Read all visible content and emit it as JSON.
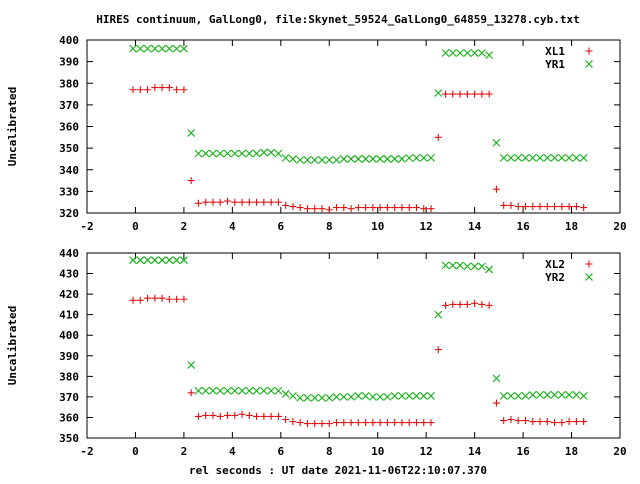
{
  "title": "HIRES continuum, GalLong0, file:Skynet_59524_GalLong0_64859_13278.cyb.txt",
  "xlabel": "rel seconds : UT date 2021-11-06T22:10:07.370",
  "colors": {
    "red": "#e01010",
    "green": "#10b010"
  },
  "chart_data": [
    {
      "type": "scatter",
      "ylabel": "Uncalibrated",
      "xlim": [
        -2,
        20
      ],
      "ylim": [
        320,
        400
      ],
      "xticks": [
        -2,
        0,
        2,
        4,
        6,
        8,
        10,
        12,
        14,
        16,
        18,
        20
      ],
      "yticks": [
        320,
        330,
        340,
        350,
        360,
        370,
        380,
        390,
        400
      ],
      "legend_position": "top-right",
      "series": [
        {
          "name": "XL1",
          "marker": "plus",
          "color": "#e01010",
          "x": [
            -0.1,
            0.2,
            0.5,
            0.8,
            1.1,
            1.4,
            1.7,
            2.0,
            2.3,
            2.6,
            2.9,
            3.2,
            3.5,
            3.8,
            4.1,
            4.4,
            4.7,
            5.0,
            5.3,
            5.6,
            5.9,
            6.2,
            6.5,
            6.8,
            7.1,
            7.4,
            7.7,
            8.0,
            8.3,
            8.6,
            8.9,
            9.2,
            9.5,
            9.8,
            10.1,
            10.4,
            10.7,
            11.0,
            11.3,
            11.6,
            11.9,
            12.2,
            12.5,
            12.8,
            13.1,
            13.4,
            13.7,
            14.0,
            14.3,
            14.6,
            14.9,
            15.2,
            15.5,
            15.8,
            16.1,
            16.4,
            16.7,
            17.0,
            17.3,
            17.6,
            17.9,
            18.2,
            18.5
          ],
          "y": [
            377,
            377,
            377,
            378,
            378,
            378,
            377,
            377,
            335,
            324.5,
            325,
            325,
            325,
            325.5,
            325,
            325,
            325,
            325,
            325,
            325,
            325,
            323.5,
            323,
            322.5,
            322,
            322,
            322,
            321.5,
            322.5,
            322.5,
            322,
            322.5,
            322.5,
            322.5,
            322.5,
            322.5,
            322.5,
            322.5,
            322.5,
            322.5,
            322,
            322,
            355,
            375,
            375,
            375,
            375,
            375,
            375,
            375,
            331,
            323.5,
            323.5,
            323,
            323,
            323,
            323,
            323,
            323,
            323,
            323,
            323,
            322.5
          ]
        },
        {
          "name": "YR1",
          "marker": "cross",
          "color": "#10b010",
          "x": [
            -0.1,
            0.2,
            0.5,
            0.8,
            1.1,
            1.4,
            1.7,
            2.0,
            2.3,
            2.6,
            2.9,
            3.2,
            3.5,
            3.8,
            4.1,
            4.4,
            4.7,
            5.0,
            5.3,
            5.6,
            5.9,
            6.2,
            6.5,
            6.8,
            7.1,
            7.4,
            7.7,
            8.0,
            8.3,
            8.6,
            8.9,
            9.2,
            9.5,
            9.8,
            10.1,
            10.4,
            10.7,
            11.0,
            11.3,
            11.6,
            11.9,
            12.2,
            12.5,
            12.8,
            13.1,
            13.4,
            13.7,
            14.0,
            14.3,
            14.6,
            14.9,
            15.2,
            15.5,
            15.8,
            16.1,
            16.4,
            16.7,
            17.0,
            17.3,
            17.6,
            17.9,
            18.2,
            18.5
          ],
          "y": [
            396,
            396,
            396,
            396,
            396,
            396,
            396,
            396,
            357,
            347.5,
            347.5,
            347.5,
            347.5,
            347.5,
            347.5,
            347.5,
            347.5,
            347.5,
            348,
            348,
            347.5,
            345.5,
            345,
            344.5,
            344.5,
            344.5,
            344.5,
            344.5,
            344.5,
            345,
            345,
            345,
            345,
            345,
            345,
            345,
            345,
            345,
            345.5,
            345.5,
            345.5,
            345.5,
            375.5,
            394,
            394,
            394,
            394,
            394,
            394,
            393,
            352.5,
            345.5,
            345.5,
            345.5,
            345.5,
            345.5,
            345.5,
            345.5,
            345.5,
            345.5,
            345.5,
            345.5,
            345.5
          ]
        }
      ]
    },
    {
      "type": "scatter",
      "ylabel": "Uncalibrated",
      "xlim": [
        -2,
        20
      ],
      "ylim": [
        350,
        440
      ],
      "xticks": [
        -2,
        0,
        2,
        4,
        6,
        8,
        10,
        12,
        14,
        16,
        18,
        20
      ],
      "yticks": [
        350,
        360,
        370,
        380,
        390,
        400,
        410,
        420,
        430,
        440
      ],
      "legend_position": "top-right",
      "series": [
        {
          "name": "XL2",
          "marker": "plus",
          "color": "#e01010",
          "x": [
            -0.1,
            0.2,
            0.5,
            0.8,
            1.1,
            1.4,
            1.7,
            2.0,
            2.3,
            2.6,
            2.9,
            3.2,
            3.5,
            3.8,
            4.1,
            4.4,
            4.7,
            5.0,
            5.3,
            5.6,
            5.9,
            6.2,
            6.5,
            6.8,
            7.1,
            7.4,
            7.7,
            8.0,
            8.3,
            8.6,
            8.9,
            9.2,
            9.5,
            9.8,
            10.1,
            10.4,
            10.7,
            11.0,
            11.3,
            11.6,
            11.9,
            12.2,
            12.5,
            12.8,
            13.1,
            13.4,
            13.7,
            14.0,
            14.3,
            14.6,
            14.9,
            15.2,
            15.5,
            15.8,
            16.1,
            16.4,
            16.7,
            17.0,
            17.3,
            17.6,
            17.9,
            18.2,
            18.5
          ],
          "y": [
            417,
            417,
            418,
            418,
            418,
            417.5,
            417.5,
            417.5,
            372,
            360.5,
            361,
            361,
            360.5,
            361,
            361,
            361.5,
            361,
            360.5,
            360.5,
            360.5,
            360.5,
            359,
            358,
            357.5,
            357,
            357,
            357,
            357,
            357.5,
            357.5,
            357.5,
            357.5,
            357.5,
            357.5,
            357.5,
            357.5,
            357.5,
            357.5,
            357.5,
            357.5,
            357.5,
            357.5,
            393,
            414.5,
            415,
            415,
            415,
            415.5,
            415,
            414.5,
            367,
            358.5,
            359,
            358.5,
            358.5,
            358,
            358,
            358,
            357.5,
            357.5,
            358,
            358,
            358
          ]
        },
        {
          "name": "YR2",
          "marker": "cross",
          "color": "#10b010",
          "x": [
            -0.1,
            0.2,
            0.5,
            0.8,
            1.1,
            1.4,
            1.7,
            2.0,
            2.3,
            2.6,
            2.9,
            3.2,
            3.5,
            3.8,
            4.1,
            4.4,
            4.7,
            5.0,
            5.3,
            5.6,
            5.9,
            6.2,
            6.5,
            6.8,
            7.1,
            7.4,
            7.7,
            8.0,
            8.3,
            8.6,
            8.9,
            9.2,
            9.5,
            9.8,
            10.1,
            10.4,
            10.7,
            11.0,
            11.3,
            11.6,
            11.9,
            12.2,
            12.5,
            12.8,
            13.1,
            13.4,
            13.7,
            14.0,
            14.3,
            14.6,
            14.9,
            15.2,
            15.5,
            15.8,
            16.1,
            16.4,
            16.7,
            17.0,
            17.3,
            17.6,
            17.9,
            18.2,
            18.5
          ],
          "y": [
            436.5,
            436.5,
            436.5,
            436.5,
            436.5,
            436.5,
            436.5,
            436.5,
            385.5,
            373,
            373,
            373,
            373,
            373,
            373,
            373,
            373,
            373,
            373,
            373,
            373,
            371.5,
            370.5,
            369.5,
            369.5,
            369.5,
            369.5,
            369.5,
            370,
            370,
            370,
            370.5,
            370.5,
            370,
            370,
            370,
            370.5,
            370.5,
            370.5,
            370.5,
            370.5,
            370.5,
            410,
            434,
            434,
            434,
            433.5,
            433.5,
            433.5,
            432,
            379,
            370.5,
            370.5,
            370.5,
            370.5,
            371,
            371,
            371,
            371,
            371,
            371,
            371,
            370.5
          ]
        }
      ]
    }
  ]
}
